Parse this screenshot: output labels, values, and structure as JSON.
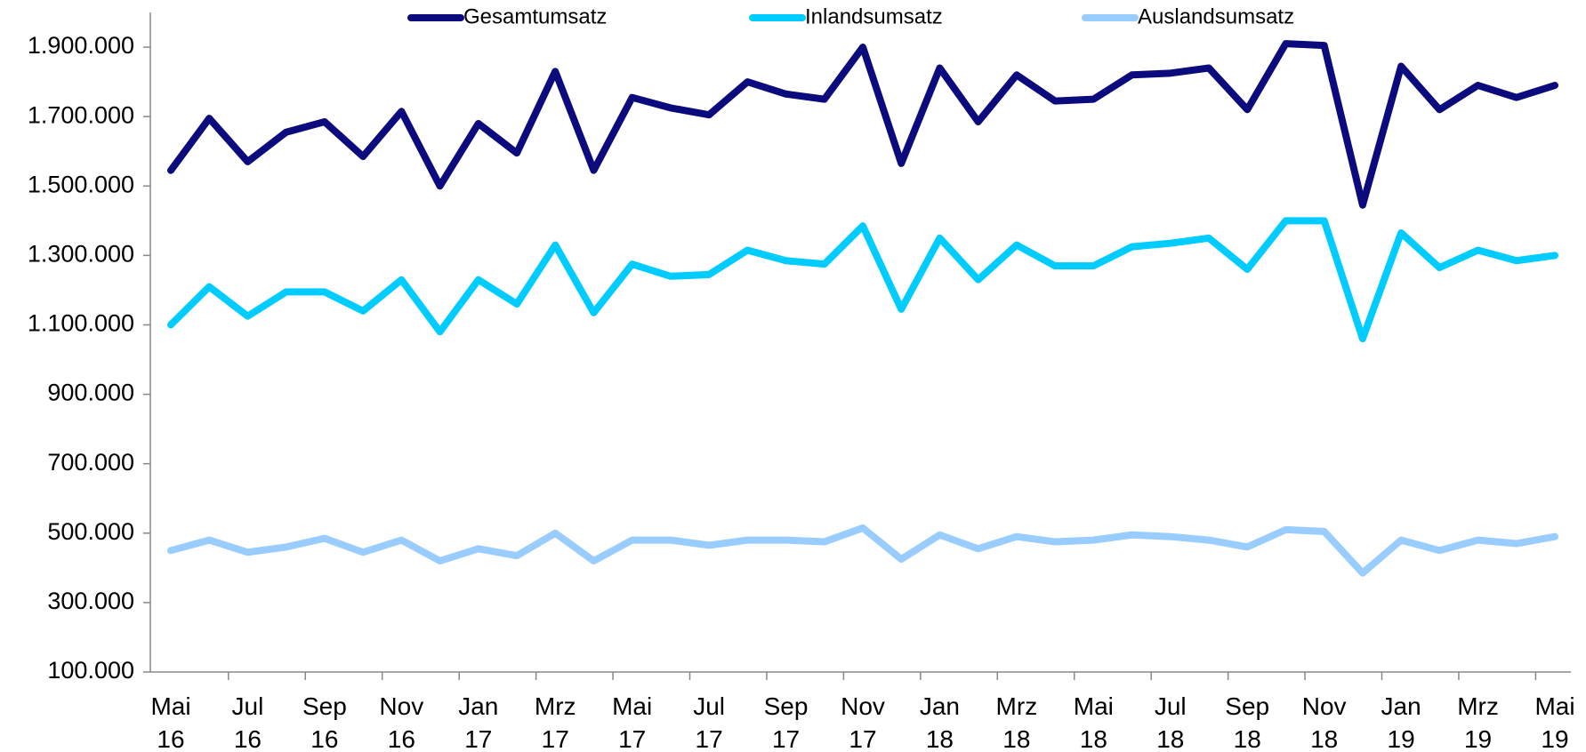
{
  "chart_data": {
    "type": "line",
    "categories": [
      "Mai 16",
      null,
      "Jul 16",
      null,
      "Sep 16",
      null,
      "Nov 16",
      null,
      "Jan 17",
      null,
      "Mrz 17",
      null,
      "Mai 17",
      null,
      "Jul 17",
      null,
      "Sep 17",
      null,
      "Nov 17",
      null,
      "Jan 18",
      null,
      "Mrz 18",
      null,
      "Mai 18",
      null,
      "Jul 18",
      null,
      "Sep 18",
      null,
      "Nov 18",
      null,
      "Jan 19",
      null,
      "Mrz 19",
      null,
      "Mai 19"
    ],
    "series": [
      {
        "name": "Gesamtumsatz",
        "color": "#0b0b7e",
        "values": [
          1545000,
          1695000,
          1570000,
          1655000,
          1685000,
          1585000,
          1715000,
          1500000,
          1680000,
          1595000,
          1830000,
          1545000,
          1755000,
          1725000,
          1705000,
          1800000,
          1765000,
          1750000,
          1900000,
          1565000,
          1840000,
          1685000,
          1820000,
          1745000,
          1750000,
          1820000,
          1825000,
          1840000,
          1720000,
          1910000,
          1905000,
          1445000,
          1845000,
          1720000,
          1790000,
          1755000,
          1790000
        ]
      },
      {
        "name": "Inlandsumsatz",
        "color": "#00ccff",
        "values": [
          1100000,
          1210000,
          1125000,
          1195000,
          1195000,
          1140000,
          1230000,
          1080000,
          1230000,
          1160000,
          1330000,
          1135000,
          1275000,
          1240000,
          1245000,
          1315000,
          1285000,
          1275000,
          1385000,
          1145000,
          1350000,
          1230000,
          1330000,
          1270000,
          1270000,
          1325000,
          1335000,
          1350000,
          1260000,
          1400000,
          1400000,
          1060000,
          1365000,
          1265000,
          1315000,
          1285000,
          1300000
        ]
      },
      {
        "name": "Auslandsumsatz",
        "color": "#99ccff",
        "values": [
          450000,
          480000,
          445000,
          460000,
          485000,
          445000,
          480000,
          420000,
          455000,
          435000,
          500000,
          420000,
          480000,
          480000,
          465000,
          480000,
          480000,
          475000,
          515000,
          425000,
          495000,
          455000,
          490000,
          475000,
          480000,
          495000,
          490000,
          480000,
          460000,
          510000,
          505000,
          385000,
          480000,
          450000,
          480000,
          470000,
          490000
        ]
      }
    ],
    "ylim": [
      100000,
      2000000
    ],
    "yticks": [
      {
        "value": 100000,
        "label": "100.000"
      },
      {
        "value": 300000,
        "label": "300.000"
      },
      {
        "value": 500000,
        "label": "500.000"
      },
      {
        "value": 700000,
        "label": "700.000"
      },
      {
        "value": 900000,
        "label": "900.000"
      },
      {
        "value": 1100000,
        "label": "1.100.000"
      },
      {
        "value": 1300000,
        "label": "1.300.000"
      },
      {
        "value": 1500000,
        "label": "1.500.000"
      },
      {
        "value": 1700000,
        "label": "1.700.000"
      },
      {
        "value": 1900000,
        "label": "1.900.000"
      }
    ],
    "grid": false,
    "legend": "top"
  }
}
